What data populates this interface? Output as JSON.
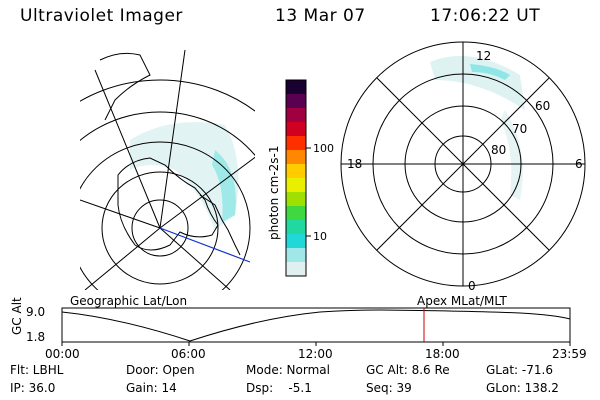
{
  "header": {
    "instrument": "Ultraviolet Imager",
    "date": "13 Mar 07",
    "time": "17:06:22 UT"
  },
  "colorbar": {
    "label": "photon cm-2s-1",
    "ticks": [
      "100",
      "10"
    ],
    "colors": [
      "#1a0030",
      "#5a0050",
      "#a00040",
      "#d00020",
      "#ff3000",
      "#ff8800",
      "#ffcc00",
      "#e8f000",
      "#a0e000",
      "#40d840",
      "#20d8a0",
      "#20d8d8",
      "#a0e8e8",
      "#e0f0f0"
    ]
  },
  "left_map": {
    "caption": "Geographic Lat/Lon"
  },
  "right_map": {
    "caption": "Apex MLat/MLT",
    "mlt_labels": {
      "top": "12",
      "left": "18",
      "right": "6",
      "bottom": "0"
    },
    "mlat_labels": [
      "60",
      "70",
      "80"
    ]
  },
  "altitude_plot": {
    "ylabel": "GC Alt",
    "ytick_top": "9.0",
    "ytick_bottom": "1.8",
    "xticks": [
      "00:00",
      "06:00",
      "12:00",
      "18:00",
      "23:59"
    ],
    "marker_color": "#cc0000"
  },
  "info": {
    "flt": "Flt: LBHL",
    "door": "Door: Open",
    "mode": "Mode: Normal",
    "gc_alt": "GC Alt: 8.6 Re",
    "glat": "GLat: -71.6",
    "ip": "IP: 36.0",
    "gain": "Gain: 14",
    "dsp": "Dsp:    -5.1",
    "seq": "Seq: 39",
    "glon": "GLon: 138.2"
  }
}
